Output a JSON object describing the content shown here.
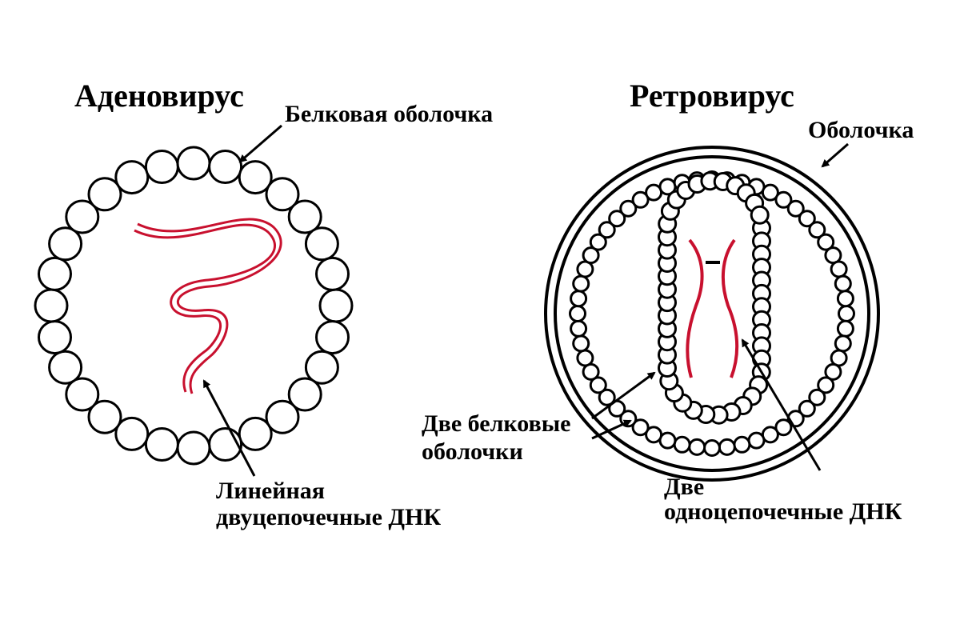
{
  "adenovirus": {
    "title": "Аденовирус",
    "capsid_label": "Белковая оболочка",
    "dna_label_line1": "Линейная",
    "dna_label_line2": "двуцепочечные ДНК"
  },
  "retrovirus": {
    "title": "Ретровирус",
    "envelope_label": "Оболочка",
    "capsids_label_line1": "Две белковые",
    "capsids_label_line2": "оболочки",
    "rna_label_line1": "Две",
    "rna_label_line2": "одноцепочечные ДНК"
  },
  "colors": {
    "outline": "#000000",
    "nucleic_acid": "#c8102e",
    "background": "#ffffff"
  }
}
